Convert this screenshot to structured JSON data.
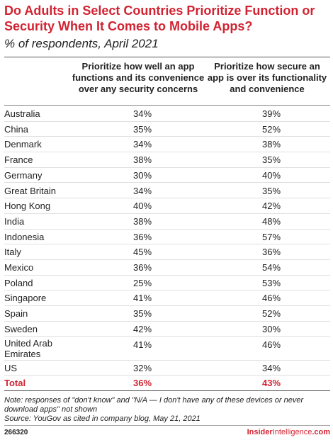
{
  "chart_data": {
    "type": "table",
    "title": "Do Adults in Select Countries Prioritize Function or Security When It Comes to Mobile Apps?",
    "subtitle": "% of respondents, April 2021",
    "columns": [
      "",
      "Prioritize how well an app functions and its convenience over any security concerns",
      "Prioritize how secure an app is over its functionality and convenience"
    ],
    "rows": [
      {
        "country": "Australia",
        "function": "34%",
        "security": "39%"
      },
      {
        "country": "China",
        "function": "35%",
        "security": "52%"
      },
      {
        "country": "Denmark",
        "function": "34%",
        "security": "38%"
      },
      {
        "country": "France",
        "function": "38%",
        "security": "35%"
      },
      {
        "country": "Germany",
        "function": "30%",
        "security": "40%"
      },
      {
        "country": "Great Britain",
        "function": "34%",
        "security": "35%"
      },
      {
        "country": "Hong Kong",
        "function": "40%",
        "security": "42%"
      },
      {
        "country": "India",
        "function": "38%",
        "security": "48%"
      },
      {
        "country": "Indonesia",
        "function": "36%",
        "security": "57%"
      },
      {
        "country": "Italy",
        "function": "45%",
        "security": "36%"
      },
      {
        "country": "Mexico",
        "function": "36%",
        "security": "54%"
      },
      {
        "country": "Poland",
        "function": "25%",
        "security": "53%"
      },
      {
        "country": "Singapore",
        "function": "41%",
        "security": "46%"
      },
      {
        "country": "Spain",
        "function": "35%",
        "security": "52%"
      },
      {
        "country": "Sweden",
        "function": "42%",
        "security": "30%"
      },
      {
        "country": "United Arab Emirates",
        "function": "41%",
        "security": "46%"
      },
      {
        "country": "US",
        "function": "32%",
        "security": "34%"
      }
    ],
    "total": {
      "country": "Total",
      "function": "36%",
      "security": "43%"
    }
  },
  "notes": {
    "note": "Note: responses of \"don't know\" and \"N/A — I don't have any of these devices or never download apps\" not shown",
    "source": "Source: YouGov as cited in company blog, May 21, 2021"
  },
  "footer": {
    "chart_id": "266320",
    "brand_bold": "Insider",
    "brand_light": "Intelligence",
    "brand_suffix": ".com"
  },
  "colors": {
    "accent": "#d12332",
    "text": "#222222",
    "row_divider": "#e0e0e0"
  }
}
